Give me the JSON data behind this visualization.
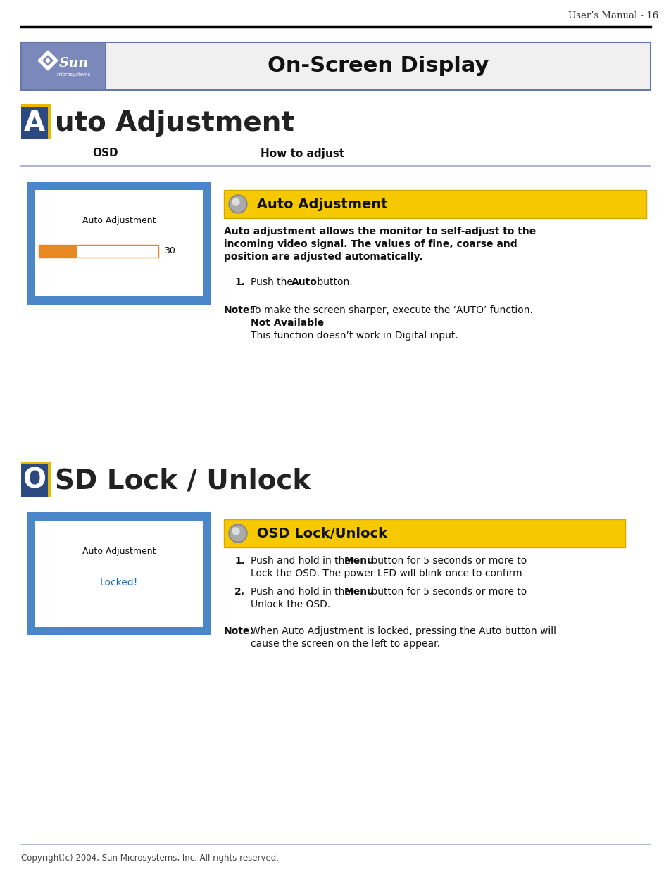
{
  "page_title": "User’s Manual - 16",
  "header_title": "On-Screen Display",
  "header_bg": "#8892bb",
  "header_bg_right": "#f0f0f0",
  "header_border": "#6678aa",
  "section1_title_letter": "A",
  "section1_title_rest": "uto Adjustment",
  "section1_letter_bg": "#2d4a80",
  "section1_letter_fg": "#ffffff",
  "section1_letter_outline": "#e8b800",
  "col1_label": "OSD",
  "col2_label": "How to adjust",
  "osd_box_border": "#4a86c8",
  "osd_box1_text1": "Auto Adjustment",
  "osd_box1_bar_color": "#e88820",
  "osd_box1_bar_bg": "#f0f0f0",
  "osd_box1_bar_border": "#e88820",
  "osd_box1_bar_value": "30",
  "adj_header_text": " Auto Adjustment",
  "adj_header_bg": "#f5c800",
  "adj_header_border": "#d4a800",
  "adj_desc1": "Auto adjustment allows the monitor to self-adjust to the",
  "adj_desc2": "incoming video signal. The values of fine, coarse and",
  "adj_desc3": "position are adjusted automatically.",
  "section2_title_letter": "O",
  "section2_title_rest": "SD Lock / Unlock",
  "section2_letter_bg": "#2d4a80",
  "section2_letter_fg": "#ffffff",
  "section2_letter_outline": "#e8b800",
  "osd_box2_text1": "Auto Adjustment",
  "osd_box2_text2": "Locked!",
  "osd_box2_text2_color": "#1a6ab5",
  "osd2_header_text": " OSD Lock/Unlock",
  "osd2_header_bg": "#f5c800",
  "footer_text": "Copyright(c) 2004, Sun Microsystems, Inc. All rights reserved.",
  "footer_line_color": "#a0a8c8",
  "bg_color": "#ffffff",
  "text_color": "#111111",
  "sun_bg": "#7b88bb"
}
